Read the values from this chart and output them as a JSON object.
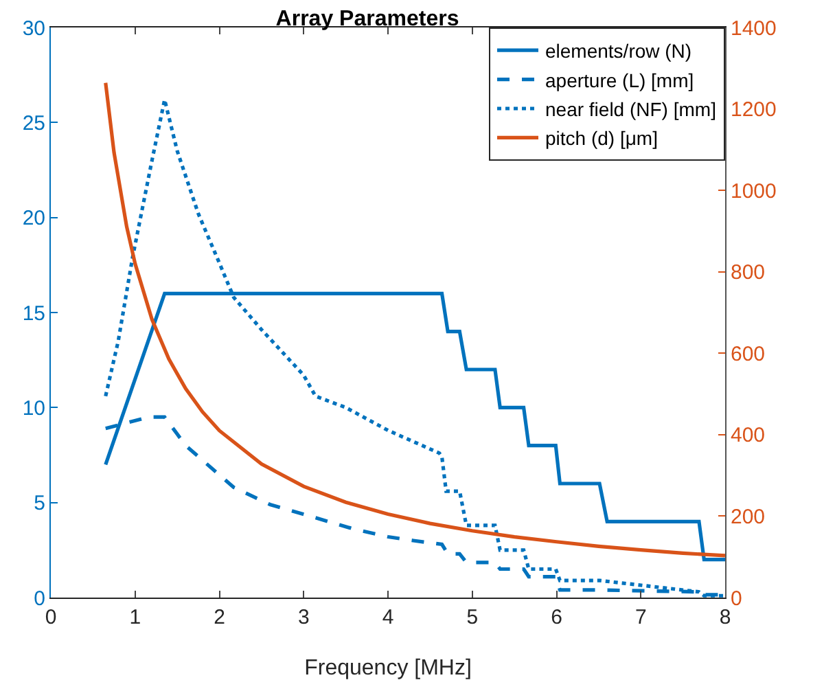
{
  "chart_data": {
    "type": "line",
    "title": "Array Parameters",
    "xlabel": "Frequency [MHz]",
    "xlim": [
      0,
      8
    ],
    "xticks": [
      0,
      1,
      2,
      3,
      4,
      5,
      6,
      7,
      8
    ],
    "ylim": [
      0,
      30
    ],
    "yticks": [
      0,
      5,
      10,
      15,
      20,
      25,
      30
    ],
    "y2lim": [
      0,
      1400
    ],
    "y2ticks": [
      0,
      200,
      400,
      600,
      800,
      1000,
      1200,
      1400
    ],
    "grid": false,
    "legend": "top right",
    "marker": "none",
    "series": [
      {
        "name": "elements/row (N)",
        "color": "#0072bd",
        "line_style": "solid",
        "x": [
          0.65,
          1.35,
          4.64,
          4.71,
          4.85,
          4.93,
          5.27,
          5.33,
          5.61,
          5.67,
          5.99,
          6.04,
          6.51,
          6.6,
          7.69,
          7.75,
          8
        ],
        "values": [
          7,
          16,
          16,
          14,
          14,
          12,
          12,
          10,
          10,
          8,
          8,
          6,
          6,
          4,
          4,
          2,
          2
        ]
      },
      {
        "name": "aperture (L) [mm]",
        "color": "#0072bd",
        "line_style": "dashed",
        "x": [
          0.65,
          1.16,
          1.35,
          1.6,
          2.17,
          2.6,
          3.14,
          3.6,
          4.0,
          4.3,
          4.64,
          4.71,
          4.85,
          4.93,
          5.27,
          5.33,
          5.61,
          5.67,
          5.99,
          6.04,
          6.51,
          7.69,
          7.75,
          8
        ],
        "values": [
          8.9,
          9.5,
          9.5,
          8.0,
          5.8,
          4.9,
          4.2,
          3.6,
          3.2,
          3.0,
          2.8,
          2.3,
          2.3,
          1.85,
          1.85,
          1.5,
          1.5,
          1.1,
          1.1,
          0.4,
          0.4,
          0.3,
          0.15,
          0.15
        ]
      },
      {
        "name": "near field (NF) [mm]",
        "color": "#0072bd",
        "line_style": "dotted",
        "x": [
          0.65,
          0.8,
          0.97,
          1.2,
          1.35,
          1.5,
          1.75,
          2,
          2.17,
          2.5,
          3,
          3.14,
          3.5,
          4,
          4.61,
          4.64,
          4.69,
          4.85,
          4.93,
          5.27,
          5.33,
          5.61,
          5.67,
          5.99,
          6.04,
          6.51,
          7.69,
          7.75,
          8
        ],
        "values": [
          10.6,
          13.5,
          17.9,
          23,
          26.2,
          23.5,
          20.2,
          17.6,
          15.8,
          14.1,
          11.7,
          10.6,
          10.0,
          8.8,
          7.6,
          7.4,
          5.6,
          5.6,
          3.8,
          3.8,
          2.5,
          2.5,
          1.5,
          1.5,
          0.9,
          0.9,
          0.3,
          0.1,
          0.1
        ]
      },
      {
        "name": "pitch (d) [μm]",
        "color": "#d95319",
        "line_style": "solid",
        "axis": "y2",
        "x": [
          0.65,
          0.75,
          0.9,
          1.0,
          1.2,
          1.4,
          1.6,
          1.8,
          2,
          2.5,
          3,
          3.5,
          4,
          4.5,
          5,
          5.5,
          6,
          6.5,
          7,
          7.5,
          8
        ],
        "values": [
          1264,
          1093,
          911,
          820,
          683,
          586,
          513,
          456,
          410,
          328,
          273,
          234,
          205,
          182,
          164,
          149,
          137,
          126,
          117,
          109,
          103
        ]
      }
    ]
  }
}
